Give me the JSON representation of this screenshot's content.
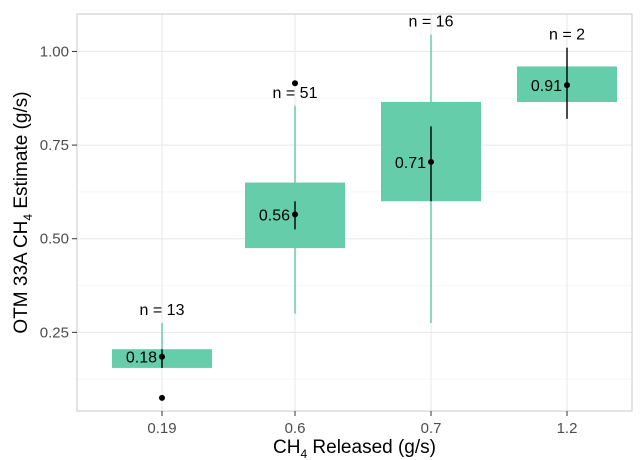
{
  "chart_data": {
    "type": "box",
    "xlabel_main": "CH",
    "xlabel_sub": "4",
    "xlabel_rest": " Released (g/s)",
    "ylabel_main": "OTM 33A CH",
    "ylabel_sub": "4",
    "ylabel_rest": " Estimate (g/s)",
    "categories": [
      "0.19",
      "0.6",
      "0.7",
      "1.2"
    ],
    "ylim": [
      0.04,
      1.1
    ],
    "yticks": [
      0.25,
      0.5,
      0.75,
      1.0
    ],
    "ytick_labels": [
      "0.25",
      "0.50",
      "0.75",
      "1.00"
    ],
    "grid": true,
    "colors": {
      "box_fill": "#66cdaa",
      "whisker": "#66cdaa",
      "ci_line": "#000000",
      "point": "#000000",
      "panel_border": "#c8c8c8",
      "grid_major": "#ebebeb",
      "grid_minor": "#f5f5f5"
    },
    "groups": [
      {
        "category": "0.19",
        "n_label": "n = 13",
        "mean_label": "0.18",
        "mean": 0.185,
        "q1": 0.155,
        "q3": 0.205,
        "whisker_low": 0.155,
        "whisker_high": 0.275,
        "ci_low": 0.155,
        "ci_high": 0.205,
        "outliers": [
          0.075
        ]
      },
      {
        "category": "0.6",
        "n_label": "n = 51",
        "mean_label": "0.56",
        "mean": 0.565,
        "q1": 0.475,
        "q3": 0.65,
        "whisker_low": 0.3,
        "whisker_high": 0.855,
        "ci_low": 0.525,
        "ci_high": 0.6,
        "outliers": [
          0.915
        ]
      },
      {
        "category": "0.7",
        "n_label": "n = 16",
        "mean_label": "0.71",
        "mean": 0.705,
        "q1": 0.6,
        "q3": 0.865,
        "whisker_low": 0.275,
        "whisker_high": 1.045,
        "ci_low": 0.6,
        "ci_high": 0.8,
        "outliers": []
      },
      {
        "category": "1.2",
        "n_label": "n = 2",
        "mean_label": "0.91",
        "mean": 0.91,
        "q1": 0.865,
        "q3": 0.96,
        "whisker_low": 0.865,
        "whisker_high": 0.96,
        "ci_low": 0.82,
        "ci_high": 1.01,
        "outliers": []
      }
    ]
  }
}
